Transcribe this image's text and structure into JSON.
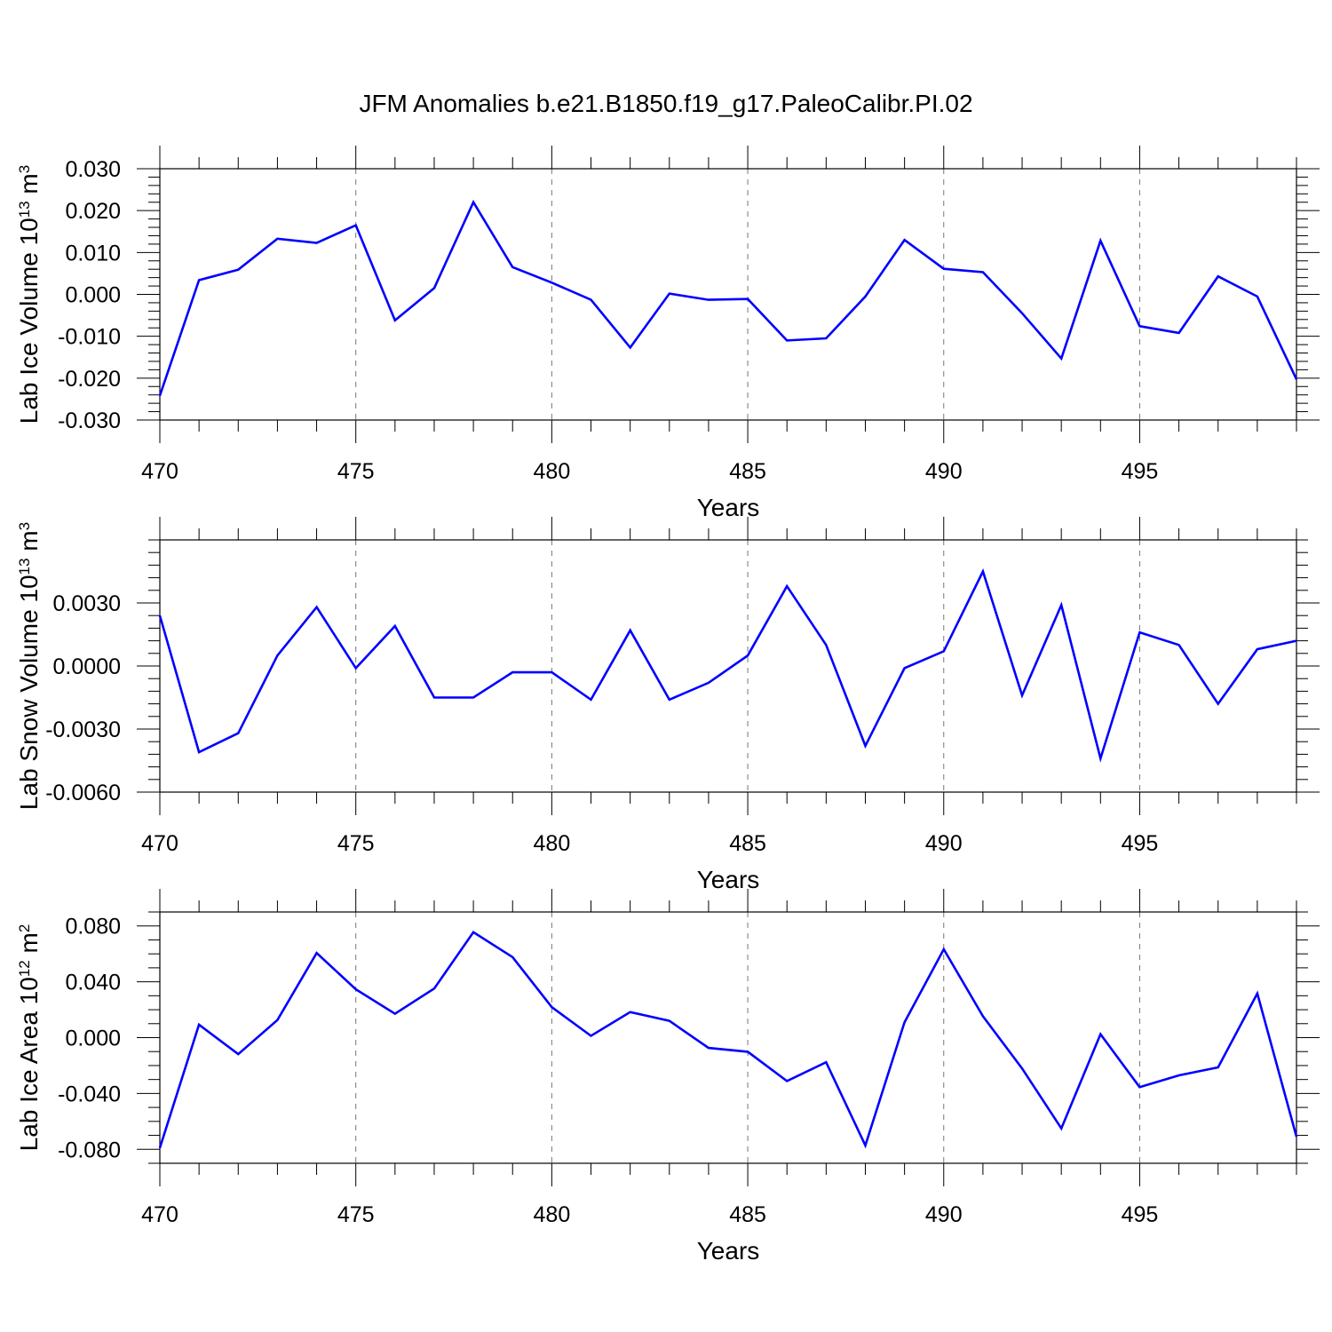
{
  "title": "JFM Anomalies b.e21.B1850.f19_g17.PaleoCalibr.PI.02",
  "line_color": "#0000ff",
  "chart_data": [
    {
      "type": "line",
      "ylabel_main": "Lab Ice Volume 10",
      "ylabel_exp": "13",
      "ylabel_unit": "m",
      "ylabel_unit_exp": "3",
      "xlabel": "Years",
      "xlim": [
        470,
        499
      ],
      "ylim": [
        -0.03,
        0.03
      ],
      "x_ticks": [
        470,
        475,
        480,
        485,
        490,
        495
      ],
      "x_tick_labels": [
        "470",
        "475",
        "480",
        "485",
        "490",
        "495"
      ],
      "y_ticks": [
        -0.03,
        -0.02,
        -0.01,
        0,
        0.01,
        0.02,
        0.03
      ],
      "y_tick_labels": [
        "-0.030",
        "-0.020",
        "-0.010",
        "0.000",
        "0.010",
        "0.020",
        "0.030"
      ],
      "y_minor_step": 0.002,
      "x": [
        470,
        471,
        472,
        473,
        474,
        475,
        476,
        477,
        478,
        479,
        480,
        481,
        482,
        483,
        484,
        485,
        486,
        487,
        488,
        489,
        490,
        491,
        492,
        493,
        494,
        495,
        496,
        497,
        498,
        499
      ],
      "values": [
        -0.0242,
        0.0034,
        0.0059,
        0.0133,
        0.0123,
        0.0165,
        -0.0062,
        0.0015,
        0.022,
        0.0065,
        0.0028,
        -0.0013,
        -0.0127,
        0.0002,
        -0.0013,
        -0.0011,
        -0.011,
        -0.0105,
        -0.0005,
        0.013,
        0.0061,
        0.0053,
        -0.0045,
        -0.0153,
        0.0128,
        -0.0076,
        -0.0092,
        0.0043,
        -0.0005,
        -0.0203
      ]
    },
    {
      "type": "line",
      "ylabel_main": "Lab Snow Volume 10",
      "ylabel_exp": "13",
      "ylabel_unit": "m",
      "ylabel_unit_exp": "3",
      "xlabel": "Years",
      "xlim": [
        470,
        499
      ],
      "ylim": [
        -0.006,
        0.006
      ],
      "x_ticks": [
        470,
        475,
        480,
        485,
        490,
        495
      ],
      "x_tick_labels": [
        "470",
        "475",
        "480",
        "485",
        "490",
        "495"
      ],
      "y_ticks": [
        -0.006,
        -0.003,
        0,
        0.003
      ],
      "y_tick_labels": [
        "-0.0060",
        "-0.0030",
        "0.0000",
        "0.0030"
      ],
      "y_minor_step": 0.0006,
      "x": [
        470,
        471,
        472,
        473,
        474,
        475,
        476,
        477,
        478,
        479,
        480,
        481,
        482,
        483,
        484,
        485,
        486,
        487,
        488,
        489,
        490,
        491,
        492,
        493,
        494,
        495,
        496,
        497,
        498,
        499
      ],
      "values": [
        0.0024,
        -0.0041,
        -0.0032,
        0.0005,
        0.0028,
        -0.0001,
        0.0019,
        -0.0015,
        -0.0015,
        -0.0003,
        -0.0003,
        -0.0016,
        0.0017,
        -0.0016,
        -0.0008,
        0.0005,
        0.0038,
        0.001,
        -0.0038,
        -0.0001,
        0.0007,
        0.0045,
        -0.0014,
        0.0029,
        -0.0044,
        0.0016,
        0.001,
        -0.0018,
        0.0008,
        0.0012
      ]
    },
    {
      "type": "line",
      "ylabel_main": "Lab Ice Area 10",
      "ylabel_exp": "12",
      "ylabel_unit": "m",
      "ylabel_unit_exp": "2",
      "xlabel": "Years",
      "xlim": [
        470,
        499
      ],
      "ylim": [
        -0.09,
        0.09
      ],
      "x_ticks": [
        470,
        475,
        480,
        485,
        490,
        495
      ],
      "x_tick_labels": [
        "470",
        "475",
        "480",
        "485",
        "490",
        "495"
      ],
      "y_ticks": [
        -0.08,
        -0.04,
        0,
        0.04,
        0.08
      ],
      "y_tick_labels": [
        "-0.080",
        "-0.040",
        "0.000",
        "0.040",
        "0.080"
      ],
      "y_minor_step": 0.01,
      "x": [
        470,
        471,
        472,
        473,
        474,
        475,
        476,
        477,
        478,
        479,
        480,
        481,
        482,
        483,
        484,
        485,
        486,
        487,
        488,
        489,
        490,
        491,
        492,
        493,
        494,
        495,
        496,
        497,
        498,
        499
      ],
      "values": [
        -0.079,
        0.0093,
        -0.0118,
        0.0126,
        0.0606,
        0.0346,
        0.0171,
        0.0352,
        0.0755,
        0.0577,
        0.0218,
        0.0013,
        0.0183,
        0.012,
        -0.0074,
        -0.0101,
        -0.0311,
        -0.0176,
        -0.0772,
        0.011,
        0.0633,
        0.0153,
        -0.0221,
        -0.065,
        0.0025,
        -0.0355,
        -0.027,
        -0.0213,
        0.0316,
        -0.071
      ]
    }
  ]
}
